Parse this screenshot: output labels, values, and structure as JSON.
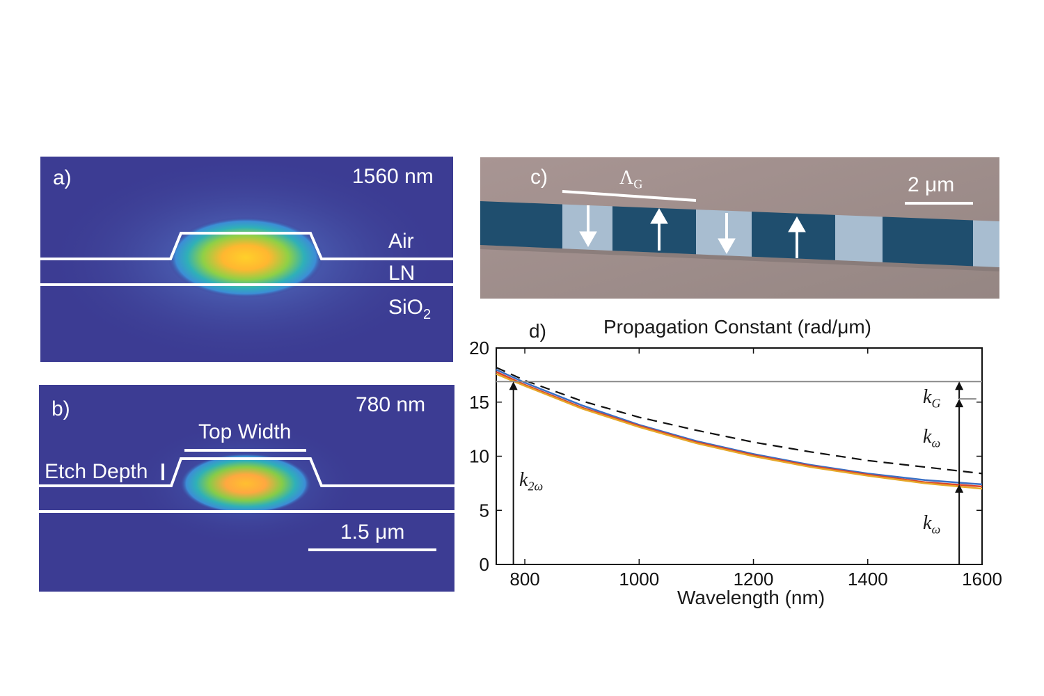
{
  "panel_a": {
    "label": "a)",
    "wavelength": "1560 nm",
    "layers": {
      "air": "Air",
      "ln": "LN",
      "sio2_main": "SiO",
      "sio2_sub": "2"
    }
  },
  "panel_b": {
    "label": "b)",
    "wavelength": "780 nm",
    "top_width": "Top Width",
    "etch_depth": "Etch Depth",
    "scalebar": "1.5 μm"
  },
  "panel_c": {
    "label": "c)",
    "period_main": "Λ",
    "period_sub": "G",
    "scalebar": "2 μm",
    "poling_arrows": [
      "down",
      "up",
      "down",
      "up"
    ]
  },
  "panel_d": {
    "label": "d)",
    "title": "Propagation Constant (rad/μm)",
    "xlabel": "Wavelength (nm)",
    "annotations": {
      "k2w_main": "k",
      "k2w_sub": "2ω",
      "kG_main": "k",
      "kG_sub": "G",
      "kw_main": "k",
      "kw_sub": "ω"
    }
  },
  "colors": {
    "mode_background": "#3c3c93",
    "waveguide_outline": "#ffffff",
    "domain_dark": "#1f4e6e",
    "domain_light": "#a8bdd0",
    "substrate": "#9c8c89",
    "curve_blue": "#3a6fc4",
    "curve_red": "#d9452b",
    "curve_yellow": "#e6a82a",
    "grating_line": "#888888"
  },
  "chart_data": {
    "type": "line",
    "title": "Propagation Constant (rad/μm)",
    "xlabel": "Wavelength (nm)",
    "ylabel": "",
    "xlim": [
      750,
      1600
    ],
    "ylim": [
      0,
      20
    ],
    "xticks": [
      800,
      1000,
      1200,
      1400,
      1600
    ],
    "yticks": [
      0,
      5,
      10,
      15,
      20
    ],
    "grid": false,
    "x": [
      750,
      800,
      900,
      1000,
      1100,
      1200,
      1300,
      1400,
      1500,
      1600
    ],
    "series": [
      {
        "color": "#3a6fc4",
        "style": "solid",
        "values": [
          18.0,
          16.8,
          14.7,
          12.9,
          11.4,
          10.2,
          9.2,
          8.4,
          7.8,
          7.4
        ]
      },
      {
        "color": "#d9452b",
        "style": "solid",
        "values": [
          17.8,
          16.6,
          14.5,
          12.8,
          11.3,
          10.1,
          9.1,
          8.3,
          7.6,
          7.2
        ]
      },
      {
        "color": "#e6a82a",
        "style": "solid",
        "values": [
          17.6,
          16.5,
          14.4,
          12.7,
          11.2,
          10.0,
          9.0,
          8.2,
          7.5,
          7.0
        ]
      },
      {
        "color": "#111111",
        "style": "dashed",
        "values": [
          18.2,
          17.0,
          15.1,
          13.6,
          12.4,
          11.3,
          10.4,
          9.6,
          9.0,
          8.4
        ]
      },
      {
        "color": "#888888",
        "style": "solid",
        "values": [
          16.9,
          16.9,
          16.9,
          16.9,
          16.9,
          16.9,
          16.9,
          16.9,
          16.9,
          16.9
        ]
      }
    ],
    "arrows": [
      {
        "label": "k2ω",
        "x": 780,
        "from": 0,
        "to": 16.9
      },
      {
        "label": "kω",
        "x": 1560,
        "from": 0,
        "to": 7.4
      },
      {
        "label": "kω",
        "x": 1560,
        "from": 7.4,
        "to": 15.3
      },
      {
        "label": "kG",
        "x": 1560,
        "from": 15.3,
        "to": 16.9
      }
    ]
  }
}
